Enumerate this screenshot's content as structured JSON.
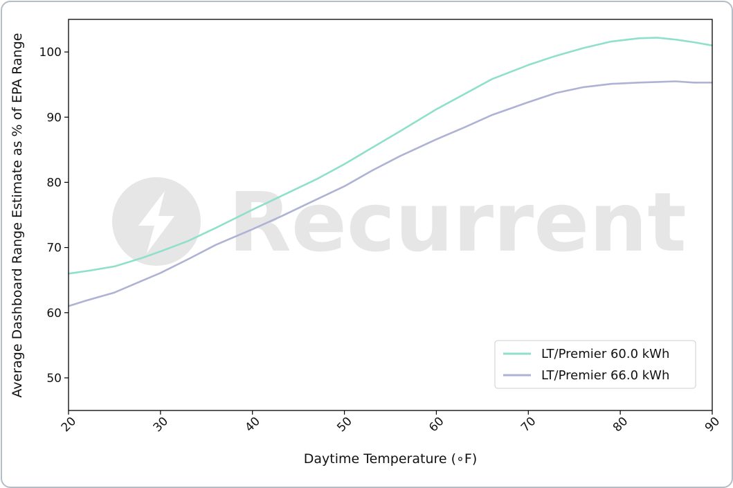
{
  "chart_data": {
    "type": "line",
    "title": "",
    "xlabel": "Daytime Temperature (∘F)",
    "ylabel": "Average Dashboard Range Estimate as % of EPA Range",
    "xlim": [
      20,
      90
    ],
    "ylim": [
      45,
      105
    ],
    "xticks": [
      20,
      30,
      40,
      50,
      60,
      70,
      80,
      90
    ],
    "yticks": [
      50,
      60,
      70,
      80,
      90,
      100
    ],
    "grid": false,
    "legend_position": "lower-right",
    "x": [
      20,
      22,
      25,
      28,
      30,
      33,
      36,
      40,
      43,
      47,
      50,
      53,
      56,
      60,
      63,
      66,
      70,
      73,
      76,
      79,
      82,
      84,
      86,
      88,
      90
    ],
    "series": [
      {
        "name": "LT/Premier 60.0 kWh",
        "color": "#8ee0cb",
        "values": [
          66.0,
          66.4,
          67.1,
          68.4,
          69.4,
          71.0,
          73.0,
          75.8,
          77.8,
          80.5,
          82.8,
          85.3,
          87.8,
          91.2,
          93.5,
          95.8,
          98.0,
          99.4,
          100.6,
          101.6,
          102.1,
          102.2,
          101.9,
          101.5,
          101.0
        ]
      },
      {
        "name": "LT/Premier 66.0 kWh",
        "color": "#aeb2d4",
        "values": [
          61.0,
          61.9,
          63.1,
          64.9,
          66.1,
          68.2,
          70.4,
          72.8,
          74.7,
          77.4,
          79.4,
          81.8,
          84.0,
          86.6,
          88.4,
          90.3,
          92.3,
          93.7,
          94.6,
          95.1,
          95.3,
          95.4,
          95.5,
          95.3,
          95.3
        ]
      }
    ]
  },
  "watermark": {
    "text": "Recurrent",
    "logo_icon": "lightning-bolt-icon"
  }
}
